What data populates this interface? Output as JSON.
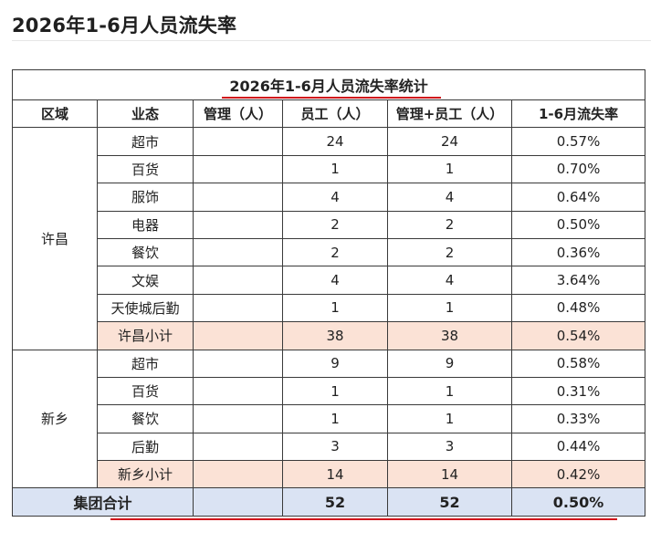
{
  "page": {
    "title": "2026年1-6月人员流失率"
  },
  "table": {
    "caption": "2026年1-6月人员流失率统计",
    "headers": [
      "区域",
      "业态",
      "管理（人）",
      "员工（人）",
      "管理+员工（人）",
      "1-6月流失率"
    ],
    "groups": [
      {
        "region": "许昌",
        "rows": [
          {
            "type": "超市",
            "mgmt": "",
            "staff": "24",
            "total": "24",
            "rate": "0.57%"
          },
          {
            "type": "百货",
            "mgmt": "",
            "staff": "1",
            "total": "1",
            "rate": "0.70%"
          },
          {
            "type": "服饰",
            "mgmt": "",
            "staff": "4",
            "total": "4",
            "rate": "0.64%"
          },
          {
            "type": "电器",
            "mgmt": "",
            "staff": "2",
            "total": "2",
            "rate": "0.50%"
          },
          {
            "type": "餐饮",
            "mgmt": "",
            "staff": "2",
            "total": "2",
            "rate": "0.36%"
          },
          {
            "type": "文娱",
            "mgmt": "",
            "staff": "4",
            "total": "4",
            "rate": "3.64%"
          },
          {
            "type": "天使城后勤",
            "mgmt": "",
            "staff": "1",
            "total": "1",
            "rate": "0.48%"
          }
        ],
        "subtotal": {
          "label": "许昌小计",
          "mgmt": "",
          "staff": "38",
          "total": "38",
          "rate": "0.54%"
        }
      },
      {
        "region": "新乡",
        "rows": [
          {
            "type": "超市",
            "mgmt": "",
            "staff": "9",
            "total": "9",
            "rate": "0.58%"
          },
          {
            "type": "百货",
            "mgmt": "",
            "staff": "1",
            "total": "1",
            "rate": "0.31%"
          },
          {
            "type": "餐饮",
            "mgmt": "",
            "staff": "1",
            "total": "1",
            "rate": "0.33%"
          },
          {
            "type": "后勤",
            "mgmt": "",
            "staff": "3",
            "total": "3",
            "rate": "0.44%"
          }
        ],
        "subtotal": {
          "label": "新乡小计",
          "mgmt": "",
          "staff": "14",
          "total": "14",
          "rate": "0.42%"
        }
      }
    ],
    "grand_total": {
      "label": "集团合计",
      "mgmt": "",
      "staff": "52",
      "total": "52",
      "rate": "0.50%"
    }
  },
  "colors": {
    "subtotal_fill": "#fbe2d6",
    "grand_total_fill": "#dae3f3",
    "highlight_underline": "#d0121b"
  }
}
